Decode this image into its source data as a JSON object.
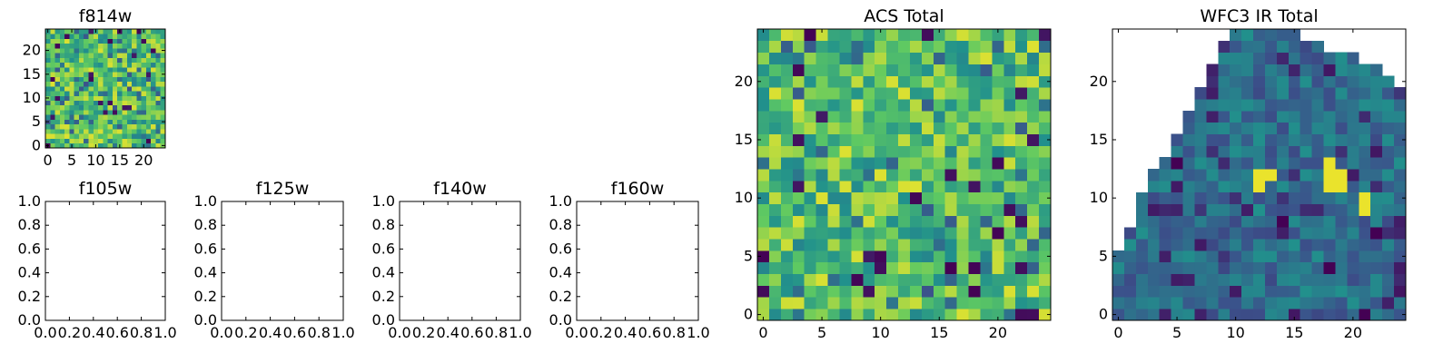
{
  "colormap": [
    "#440154",
    "#3b528b",
    "#21918c",
    "#5ec962",
    "#fde725"
  ],
  "chart_data": [
    {
      "type": "heatmap",
      "title": "f814w",
      "grid_size": [
        25,
        25
      ],
      "value_range": [
        0,
        1
      ],
      "seed": 7,
      "fill": "noise",
      "xlim": [
        -0.5,
        24.5
      ],
      "ylim": [
        -0.5,
        24.5
      ],
      "xticks": [
        0,
        5,
        10,
        15,
        20
      ],
      "yticks": [
        0,
        5,
        10,
        15,
        20
      ],
      "xticklabels": [
        "0",
        "5",
        "10",
        "15",
        "20"
      ],
      "yticklabels": [
        "0",
        "5",
        "10",
        "15",
        "20"
      ]
    },
    {
      "type": "heatmap",
      "title": "f105w",
      "empty": true,
      "xlim": [
        0,
        1
      ],
      "ylim": [
        0,
        1
      ],
      "xticks": [
        0,
        0.2,
        0.4,
        0.6,
        0.8,
        1.0
      ],
      "yticks": [
        0,
        0.2,
        0.4,
        0.6,
        0.8,
        1.0
      ],
      "xticklabels": [
        "0.0",
        "0.2",
        "0.4",
        "0.6",
        "0.8",
        "1.0"
      ],
      "yticklabels": [
        "0.0",
        "0.2",
        "0.4",
        "0.6",
        "0.8",
        "1.0"
      ]
    },
    {
      "type": "heatmap",
      "title": "f125w",
      "empty": true,
      "xlim": [
        0,
        1
      ],
      "ylim": [
        0,
        1
      ],
      "xticks": [
        0,
        0.2,
        0.4,
        0.6,
        0.8,
        1.0
      ],
      "yticks": [
        0,
        0.2,
        0.4,
        0.6,
        0.8,
        1.0
      ],
      "xticklabels": [
        "0.0",
        "0.2",
        "0.4",
        "0.6",
        "0.8",
        "1.0"
      ],
      "yticklabels": [
        "0.0",
        "0.2",
        "0.4",
        "0.6",
        "0.8",
        "1.0"
      ]
    },
    {
      "type": "heatmap",
      "title": "f140w",
      "empty": true,
      "xlim": [
        0,
        1
      ],
      "ylim": [
        0,
        1
      ],
      "xticks": [
        0,
        0.2,
        0.4,
        0.6,
        0.8,
        1.0
      ],
      "yticks": [
        0,
        0.2,
        0.4,
        0.6,
        0.8,
        1.0
      ],
      "xticklabels": [
        "0.0",
        "0.2",
        "0.4",
        "0.6",
        "0.8",
        "1.0"
      ],
      "yticklabels": [
        "0.0",
        "0.2",
        "0.4",
        "0.6",
        "0.8",
        "1.0"
      ]
    },
    {
      "type": "heatmap",
      "title": "f160w",
      "empty": true,
      "xlim": [
        0,
        1
      ],
      "ylim": [
        0,
        1
      ],
      "xticks": [
        0,
        0.2,
        0.4,
        0.6,
        0.8,
        1.0
      ],
      "yticks": [
        0,
        0.2,
        0.4,
        0.6,
        0.8,
        1.0
      ],
      "xticklabels": [
        "0.0",
        "0.2",
        "0.4",
        "0.6",
        "0.8",
        "1.0"
      ],
      "yticklabels": [
        "0.0",
        "0.2",
        "0.4",
        "0.6",
        "0.8",
        "1.0"
      ]
    },
    {
      "type": "heatmap",
      "title": "ACS Total",
      "grid_size": [
        25,
        25
      ],
      "value_range": [
        0,
        1
      ],
      "seed": 31,
      "fill": "noise",
      "xlim": [
        -0.5,
        24.5
      ],
      "ylim": [
        -0.5,
        24.5
      ],
      "xticks": [
        0,
        5,
        10,
        15,
        20
      ],
      "yticks": [
        0,
        5,
        10,
        15,
        20
      ],
      "xticklabels": [
        "0",
        "5",
        "10",
        "15",
        "20"
      ],
      "yticklabels": [
        "0",
        "5",
        "10",
        "15",
        "20"
      ]
    },
    {
      "type": "heatmap",
      "title": "WFC3 IR Total",
      "grid_size": [
        25,
        25
      ],
      "value_range": [
        0,
        1
      ],
      "seed": 101,
      "fill": "footprint",
      "row_extents": [
        [
          0,
          24
        ],
        [
          0,
          24
        ],
        [
          0,
          24
        ],
        [
          0,
          24
        ],
        [
          0,
          24
        ],
        [
          0,
          24
        ],
        [
          1,
          24
        ],
        [
          1,
          24
        ],
        [
          2,
          24
        ],
        [
          2,
          24
        ],
        [
          2,
          24
        ],
        [
          3,
          24
        ],
        [
          3,
          24
        ],
        [
          4,
          24
        ],
        [
          5,
          24
        ],
        [
          5,
          24
        ],
        [
          6,
          24
        ],
        [
          6,
          24
        ],
        [
          7,
          24
        ],
        [
          7,
          24
        ],
        [
          8,
          23
        ],
        [
          8,
          22
        ],
        [
          9,
          20
        ],
        [
          9,
          17
        ],
        [
          10,
          15
        ]
      ],
      "bright_cells": [
        [
          12,
          12
        ],
        [
          12,
          11
        ],
        [
          13,
          12
        ],
        [
          18,
          12
        ],
        [
          19,
          12
        ],
        [
          18,
          11
        ],
        [
          19,
          11
        ],
        [
          18,
          13
        ],
        [
          21,
          10
        ],
        [
          21,
          9
        ]
      ],
      "dark_cells": [
        [
          22,
          7
        ],
        [
          21,
          0
        ],
        [
          18,
          4
        ],
        [
          5,
          13
        ],
        [
          14,
          8
        ]
      ],
      "xlim": [
        -0.5,
        24.5
      ],
      "ylim": [
        -0.5,
        24.5
      ],
      "xticks": [
        0,
        5,
        10,
        15,
        20
      ],
      "yticks": [
        0,
        5,
        10,
        15,
        20
      ],
      "xticklabels": [
        "0",
        "5",
        "10",
        "15",
        "20"
      ],
      "yticklabels": [
        "0",
        "5",
        "10",
        "15",
        "20"
      ]
    }
  ]
}
